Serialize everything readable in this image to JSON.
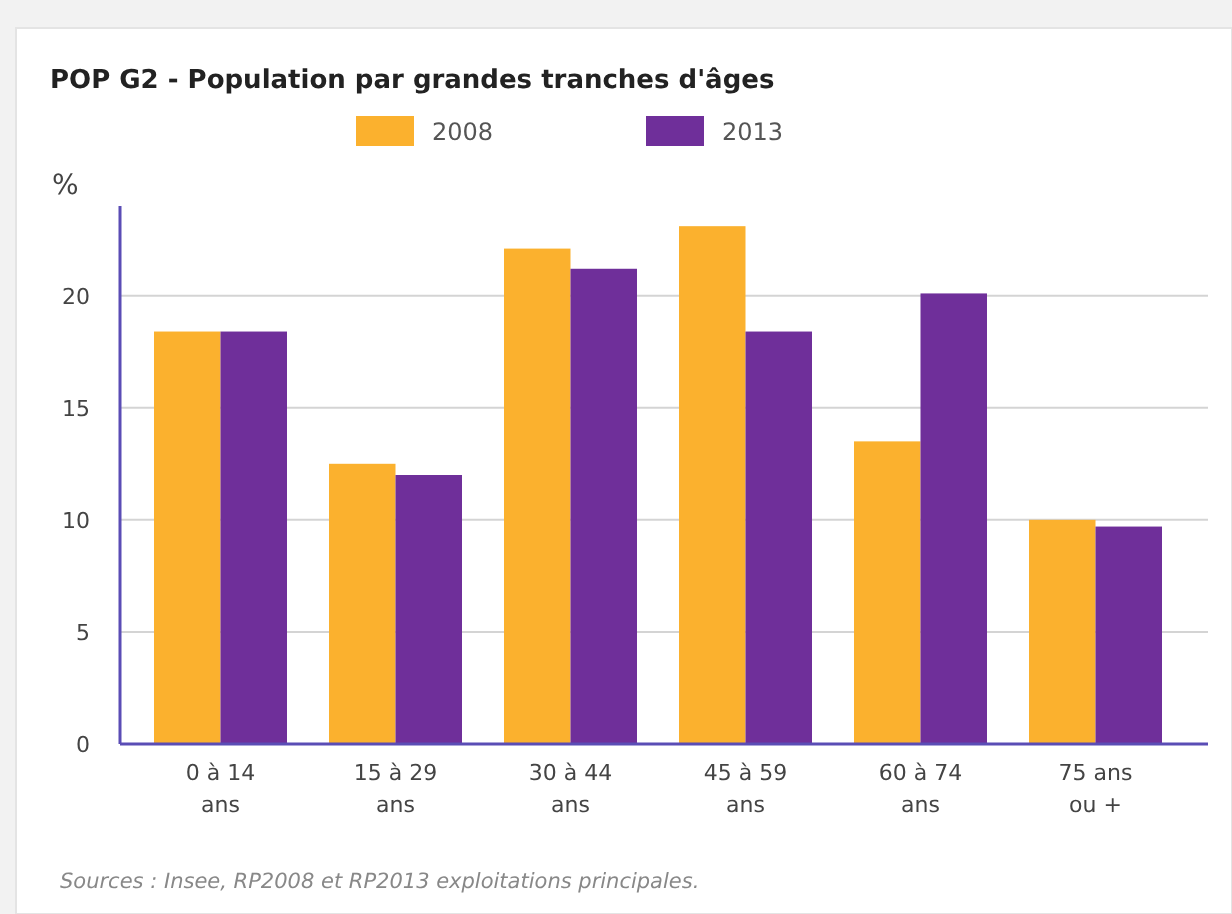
{
  "chart_data": {
    "type": "bar",
    "title": "POP G2 - Population par grandes tranches d'âges",
    "ylabel": "%",
    "categories": [
      "0 à 14 ans",
      "15 à 29 ans",
      "30 à 44 ans",
      "45 à 59 ans",
      "60 à 74 ans",
      "75 ans ou +"
    ],
    "series": [
      {
        "name": "2008",
        "color": "#fbb12e",
        "values": [
          18.4,
          12.5,
          22.1,
          23.1,
          13.5,
          10.0
        ]
      },
      {
        "name": "2013",
        "color": "#6f2f9a",
        "values": [
          18.4,
          12.0,
          21.2,
          18.4,
          20.1,
          9.7
        ]
      }
    ],
    "ylim": [
      0,
      24
    ],
    "yticks": [
      0,
      5,
      10,
      15,
      20
    ],
    "grid": "y",
    "legend": "top",
    "annotations": [
      "Sources : Insee, RP2008 et RP2013 exploitations principales."
    ]
  }
}
